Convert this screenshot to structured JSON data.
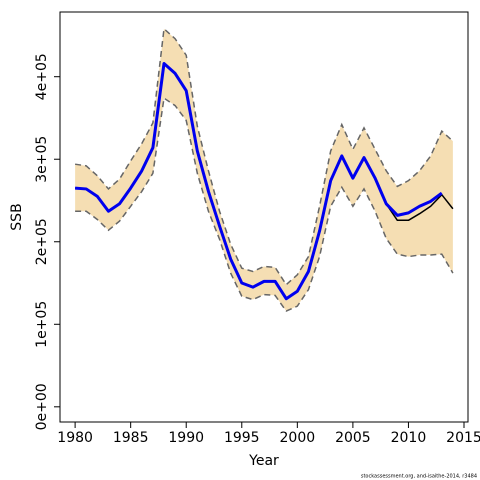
{
  "chart_data": {
    "type": "line",
    "x_label": "Year",
    "y_label": "SSB",
    "footnote": "stockassessment.org, and-isaithe-2014, r3484",
    "x": [
      1980,
      1981,
      1982,
      1983,
      1984,
      1985,
      1986,
      1987,
      1988,
      1989,
      1990,
      1991,
      1992,
      1993,
      1994,
      1995,
      1996,
      1997,
      1998,
      1999,
      2000,
      2001,
      2002,
      2003,
      2004,
      2005,
      2006,
      2007,
      2008,
      2009,
      2010,
      2011,
      2012,
      2013,
      2014
    ],
    "series": [
      {
        "color": "#000000",
        "values": [
          265000,
          264000,
          255000,
          237000,
          246000,
          265000,
          286000,
          314000,
          416000,
          404000,
          383000,
          310000,
          261000,
          219000,
          179000,
          150000,
          145000,
          152000,
          152000,
          131000,
          140000,
          164000,
          213000,
          274000,
          304000,
          277000,
          302000,
          277000,
          246000,
          226000,
          226000,
          234000,
          243000,
          257000,
          240000
        ]
      },
      {
        "color": "#0000ee",
        "values": [
          265000,
          264000,
          255000,
          237000,
          246000,
          265000,
          286000,
          314000,
          416000,
          404000,
          383000,
          310000,
          261000,
          219000,
          179000,
          150000,
          145000,
          152000,
          152000,
          131000,
          140000,
          164000,
          213000,
          274000,
          304000,
          277000,
          302000,
          277000,
          246000,
          232000,
          235000,
          243000,
          249000,
          259000,
          null
        ]
      }
    ],
    "band": {
      "color": "#f5deb3",
      "line_color": "#666666",
      "upper": [
        294000,
        292000,
        280000,
        264000,
        276000,
        298000,
        319000,
        344000,
        458000,
        446000,
        426000,
        340000,
        286000,
        237000,
        197000,
        168000,
        164000,
        170000,
        169000,
        148000,
        160000,
        182000,
        243000,
        310000,
        342000,
        312000,
        338000,
        312000,
        286000,
        267000,
        274000,
        286000,
        304000,
        334000,
        322000
      ],
      "lower": [
        237000,
        237000,
        227000,
        214000,
        225000,
        243000,
        261000,
        283000,
        374000,
        365000,
        347000,
        283000,
        237000,
        203000,
        162000,
        134000,
        130000,
        136000,
        135000,
        116000,
        122000,
        142000,
        182000,
        243000,
        266000,
        243000,
        264000,
        237000,
        204000,
        185000,
        182000,
        184000,
        184000,
        185000,
        162000
      ]
    },
    "xlim": [
      1978.64,
      2015.36
    ],
    "ylim": [
      -18400,
      478400
    ],
    "xticks": [
      1980,
      1985,
      1990,
      1995,
      2000,
      2005,
      2010,
      2015
    ],
    "yticks": [
      {
        "value": 0,
        "label": "0e+00"
      },
      {
        "value": 100000,
        "label": "1e+05"
      },
      {
        "value": 200000,
        "label": "2e+05"
      },
      {
        "value": 300000,
        "label": "3e+05"
      },
      {
        "value": 400000,
        "label": "4e+05"
      }
    ]
  }
}
